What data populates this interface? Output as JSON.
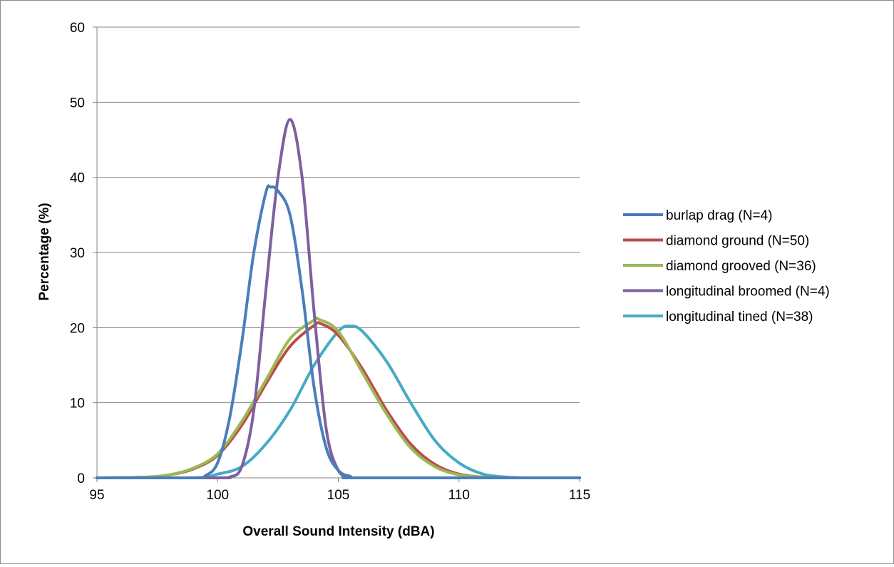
{
  "chart_data": {
    "type": "line",
    "title": "",
    "xlabel": "Overall Sound Intensity (dBA)",
    "ylabel": "Percentage (%)",
    "xlim": [
      95,
      115
    ],
    "ylim": [
      0,
      60
    ],
    "x_ticks": [
      95,
      100,
      105,
      110,
      115
    ],
    "y_ticks": [
      0,
      10,
      20,
      30,
      40,
      50,
      60
    ],
    "grid": "horizontal",
    "legend_position": "right",
    "series": [
      {
        "name": "burlap drag (N=4)",
        "color": "#4a7ebb",
        "points": [
          [
            95,
            0
          ],
          [
            99,
            0
          ],
          [
            99.5,
            0.3
          ],
          [
            100,
            2
          ],
          [
            100.5,
            8
          ],
          [
            101,
            18
          ],
          [
            101.5,
            30
          ],
          [
            102,
            38
          ],
          [
            102.2,
            38.7
          ],
          [
            102.5,
            38.2
          ],
          [
            103,
            35
          ],
          [
            103.5,
            25
          ],
          [
            104,
            12
          ],
          [
            104.5,
            4
          ],
          [
            105,
            1
          ],
          [
            105.5,
            0.2
          ],
          [
            106,
            0
          ],
          [
            115,
            0
          ]
        ]
      },
      {
        "name": "diamond ground (N=50)",
        "color": "#be4b48",
        "points": [
          [
            95,
            0
          ],
          [
            97,
            0.1
          ],
          [
            98,
            0.4
          ],
          [
            99,
            1.2
          ],
          [
            100,
            3
          ],
          [
            101,
            7
          ],
          [
            102,
            12.5
          ],
          [
            103,
            17.5
          ],
          [
            104,
            20.3
          ],
          [
            104.3,
            20.5
          ],
          [
            105,
            19
          ],
          [
            106,
            14.5
          ],
          [
            107,
            9
          ],
          [
            108,
            4.5
          ],
          [
            109,
            1.8
          ],
          [
            110,
            0.5
          ],
          [
            111,
            0.1
          ],
          [
            112,
            0
          ],
          [
            115,
            0
          ]
        ]
      },
      {
        "name": "diamond grooved (N=36)",
        "color": "#98b954",
        "points": [
          [
            95,
            0
          ],
          [
            97,
            0.1
          ],
          [
            98,
            0.4
          ],
          [
            99,
            1.3
          ],
          [
            100,
            3.2
          ],
          [
            101,
            7.5
          ],
          [
            102,
            13
          ],
          [
            103,
            18.5
          ],
          [
            104,
            21
          ],
          [
            104.2,
            21.1
          ],
          [
            105,
            19.5
          ],
          [
            106,
            14
          ],
          [
            107,
            8.5
          ],
          [
            108,
            4
          ],
          [
            109,
            1.5
          ],
          [
            110,
            0.4
          ],
          [
            111,
            0.1
          ],
          [
            112,
            0
          ],
          [
            115,
            0
          ]
        ]
      },
      {
        "name": "longitudinal broomed (N=4)",
        "color": "#7d60a0",
        "points": [
          [
            95,
            0
          ],
          [
            100,
            0
          ],
          [
            100.5,
            0.1
          ],
          [
            101,
            1.5
          ],
          [
            101.5,
            9
          ],
          [
            102,
            25
          ],
          [
            102.5,
            40
          ],
          [
            103,
            47.7
          ],
          [
            103.5,
            40
          ],
          [
            104,
            22
          ],
          [
            104.5,
            6.5
          ],
          [
            105,
            1
          ],
          [
            105.5,
            0.1
          ],
          [
            106,
            0
          ],
          [
            115,
            0
          ]
        ]
      },
      {
        "name": "longitudinal tined (N=38)",
        "color": "#46aac5",
        "points": [
          [
            95,
            0
          ],
          [
            99,
            0
          ],
          [
            100,
            0.5
          ],
          [
            101,
            1.5
          ],
          [
            102,
            4.5
          ],
          [
            103,
            9
          ],
          [
            104,
            15
          ],
          [
            105,
            19.5
          ],
          [
            105.5,
            20.2
          ],
          [
            106,
            19.5
          ],
          [
            107,
            15.5
          ],
          [
            108,
            10
          ],
          [
            109,
            5
          ],
          [
            110,
            2
          ],
          [
            111,
            0.5
          ],
          [
            112,
            0.1
          ],
          [
            113,
            0
          ],
          [
            115,
            0
          ]
        ]
      }
    ]
  }
}
